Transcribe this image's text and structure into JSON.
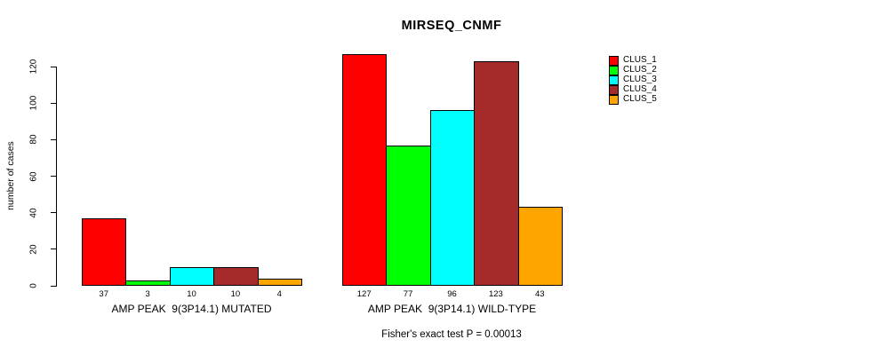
{
  "chart_data": {
    "type": "bar",
    "title": "MIRSEQ_CNMF",
    "ylabel": "number of cases",
    "xlabel": "",
    "ylim": [
      0,
      130
    ],
    "y_ticks": [
      0,
      20,
      40,
      60,
      80,
      100,
      120
    ],
    "grid": false,
    "legend_position": "right",
    "categories": [
      "AMP PEAK  9(3P14.1) MUTATED",
      "AMP PEAK  9(3P14.1) WILD-TYPE"
    ],
    "series": [
      {
        "name": "CLUS_1",
        "color": "#ff0000",
        "values": [
          37,
          127
        ]
      },
      {
        "name": "CLUS_2",
        "color": "#00ff00",
        "values": [
          3,
          77
        ]
      },
      {
        "name": "CLUS_3",
        "color": "#00ffff",
        "values": [
          10,
          96
        ]
      },
      {
        "name": "CLUS_4",
        "color": "#a52a2a",
        "values": [
          10,
          123
        ]
      },
      {
        "name": "CLUS_5",
        "color": "#ffa500",
        "values": [
          4,
          43
        ]
      }
    ],
    "bar_value_labels": [
      [
        "37",
        "3",
        "10",
        "10",
        "4"
      ],
      [
        "127",
        "77",
        "96",
        "123",
        "43"
      ]
    ],
    "footnote": "Fisher's exact test P = 0.00013"
  },
  "legend": {
    "items": [
      {
        "label": "CLUS_1",
        "color": "#ff0000"
      },
      {
        "label": "CLUS_2",
        "color": "#00ff00"
      },
      {
        "label": "CLUS_3",
        "color": "#00ffff"
      },
      {
        "label": "CLUS_4",
        "color": "#a52a2a"
      },
      {
        "label": "CLUS_5",
        "color": "#ffa500"
      }
    ]
  }
}
